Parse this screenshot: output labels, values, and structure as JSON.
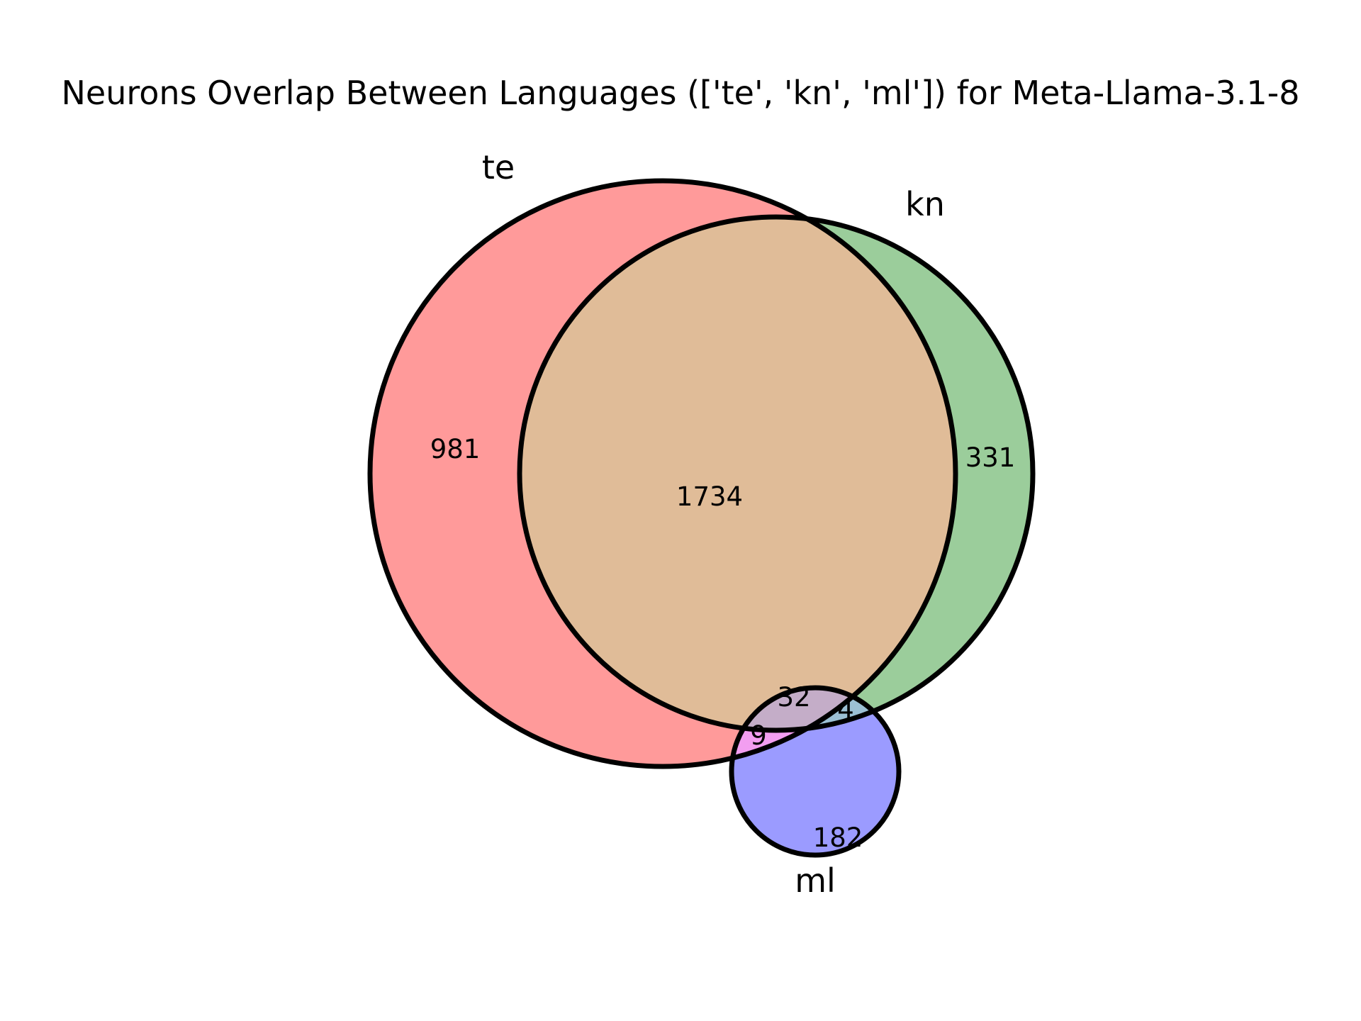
{
  "title": "Neurons Overlap Between Languages (['te', 'kn', 'ml']) for Meta-Llama-3.1-8",
  "sets": [
    {
      "key": "te",
      "label": "te",
      "color": "#ff9a9a"
    },
    {
      "key": "kn",
      "label": "kn",
      "color": "#9bcd9b"
    },
    {
      "key": "ml",
      "label": "ml",
      "color": "#9b9bff"
    }
  ],
  "regions": {
    "te_only": {
      "label": "981",
      "color": "#ff9a9a"
    },
    "kn_only": {
      "label": "331",
      "color": "#9bcd9b"
    },
    "te_kn": {
      "label": "1734",
      "color": "#e0bc98"
    },
    "ml_only": {
      "label": "182",
      "color": "#9b9bff"
    },
    "te_kn_ml": {
      "label": "32",
      "color": "#c4adc8"
    },
    "te_ml": {
      "label": "9",
      "color": "#f29ef0"
    },
    "kn_ml": {
      "label": "4",
      "color": "#9cc0d4"
    }
  }
}
